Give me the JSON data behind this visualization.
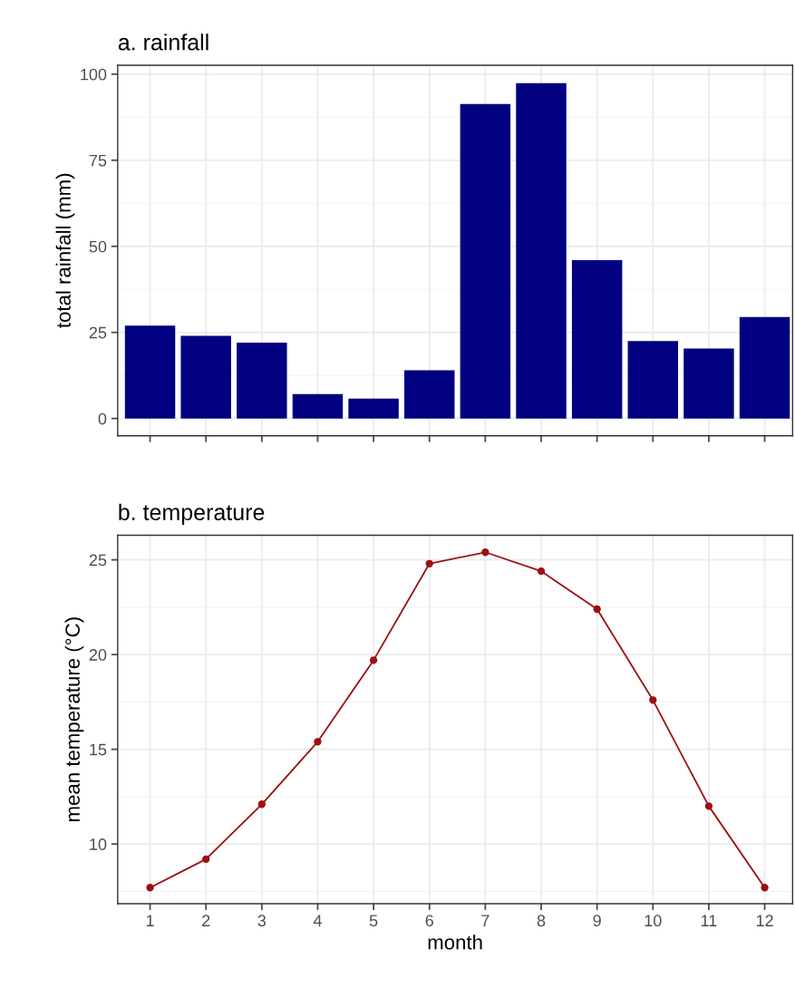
{
  "chart_data": [
    {
      "type": "bar",
      "title": "a. rainfall",
      "ylabel": "total rainfall (mm)",
      "x": [
        1,
        2,
        3,
        4,
        5,
        6,
        7,
        8,
        9,
        10,
        11,
        12
      ],
      "series": [
        {
          "color": "#000080",
          "values": [
            27,
            24,
            22,
            7.1,
            5.8,
            14,
            91.3,
            97.4,
            46,
            22.5,
            20.3,
            29.5
          ]
        }
      ],
      "xlim": [
        0.42,
        12.5
      ],
      "xticks": [
        1,
        2,
        3,
        4,
        5,
        6,
        7,
        8,
        9,
        10,
        11,
        12
      ],
      "ylim": [
        -5,
        102.6
      ],
      "yticks": [
        0,
        25,
        50,
        75,
        100
      ],
      "tick_labels": "y",
      "grid": true
    },
    {
      "type": "line",
      "title": "b. temperature",
      "xlabel": "month",
      "ylabel": "mean temperature (°C)",
      "x": [
        1,
        2,
        3,
        4,
        5,
        6,
        7,
        8,
        9,
        10,
        11,
        12
      ],
      "series": [
        {
          "color": "#9b1111",
          "values": [
            7.7,
            9.2,
            12.1,
            15.4,
            19.7,
            24.8,
            25.4,
            24.4,
            22.4,
            17.6,
            12.0,
            7.7
          ]
        }
      ],
      "marker": "circle",
      "line_style": "solid",
      "xlim": [
        0.42,
        12.5
      ],
      "xticks": [
        1,
        2,
        3,
        4,
        5,
        6,
        7,
        8,
        9,
        10,
        11,
        12
      ],
      "ylim": [
        6.85,
        26.3
      ],
      "yticks": [
        10,
        15,
        20,
        25
      ],
      "grid": true
    }
  ]
}
